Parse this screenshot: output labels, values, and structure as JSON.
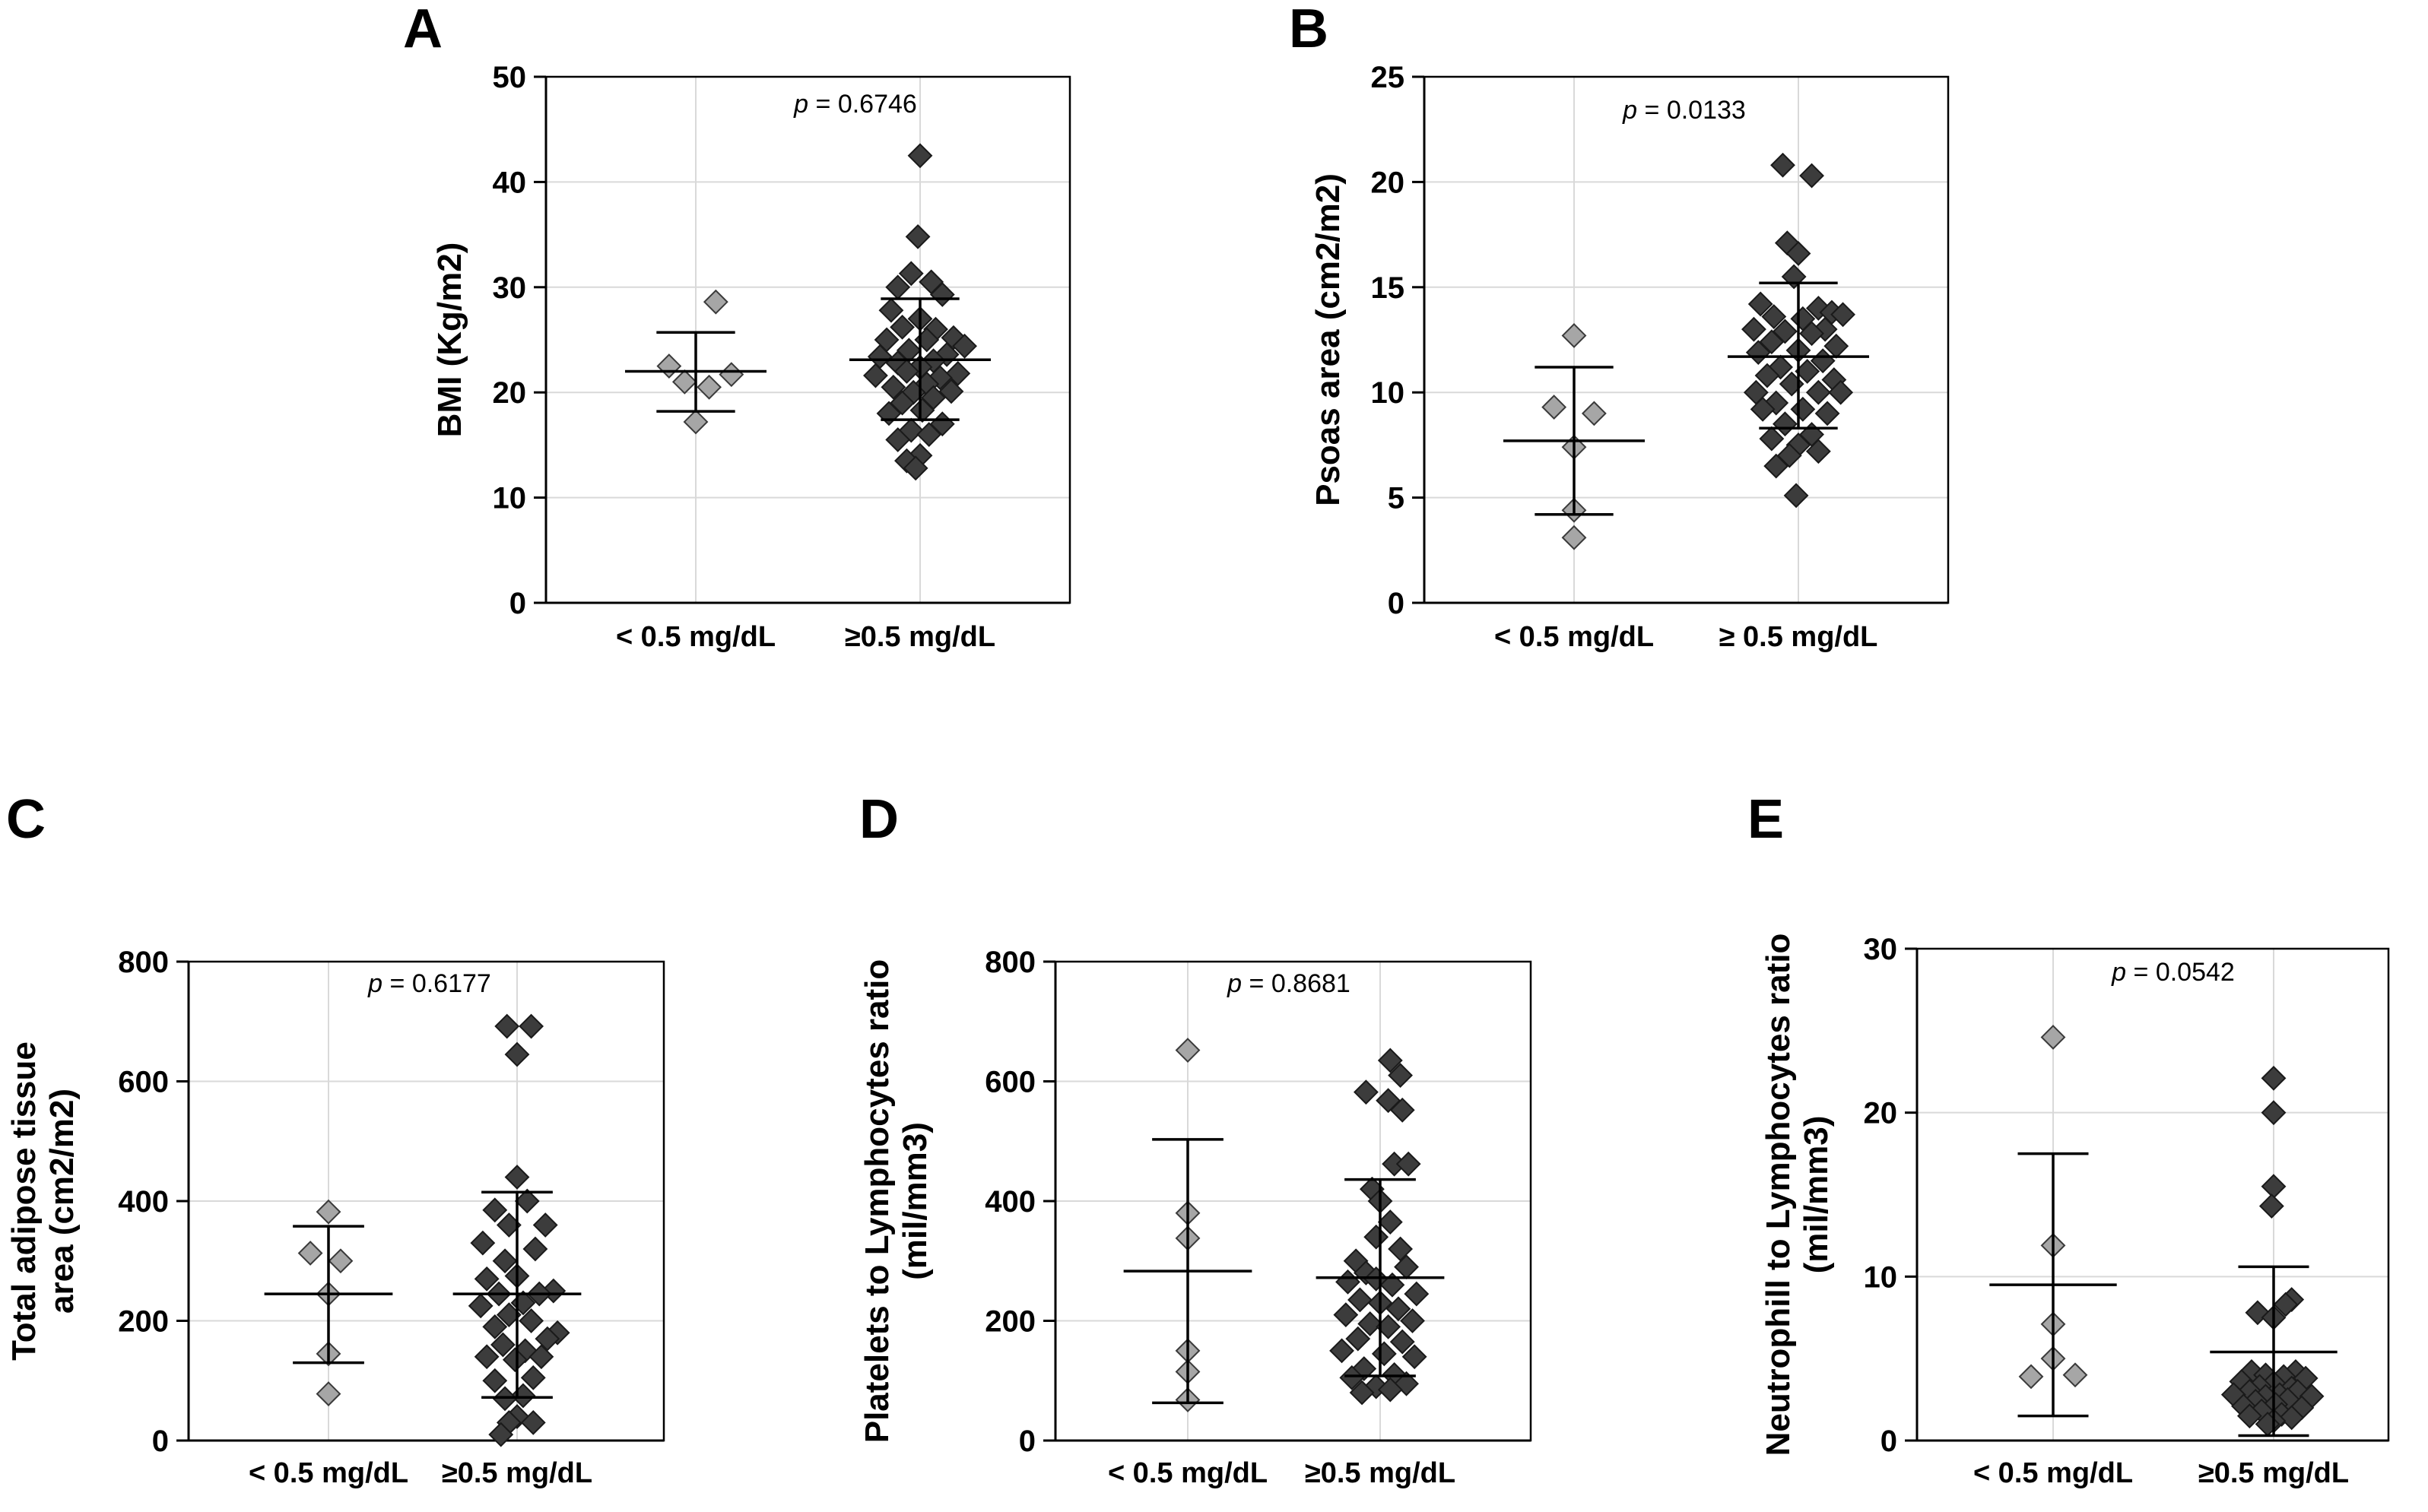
{
  "chart_data": [
    {
      "type": "scatter",
      "panel": "A",
      "ylabel": "BMI (Kg/m2)",
      "ylim": [
        0,
        50
      ],
      "yticks": [
        "0",
        "10",
        "20",
        "30",
        "40",
        "50"
      ],
      "categories": [
        "< 0.5 mg/dL",
        "≥0.5 mg/dL"
      ],
      "p_prefix": "p",
      "p_value": " = 0.6746",
      "groups": [
        {
          "category": "< 0.5 mg/dL",
          "shade": "light",
          "mean": 22.0,
          "sd_low": 18.2,
          "sd_high": 25.7,
          "points": [
            [
              -0.6,
              22.5
            ],
            [
              0.45,
              28.6
            ],
            [
              -0.25,
              21.0
            ],
            [
              0.3,
              20.5
            ],
            [
              0.8,
              21.7
            ],
            [
              0.0,
              17.2
            ]
          ]
        },
        {
          "category": "≥0.5 mg/dL",
          "shade": "dark",
          "mean": 23.1,
          "sd_low": 17.4,
          "sd_high": 28.9,
          "points": [
            [
              0.0,
              42.5
            ],
            [
              -0.05,
              34.8
            ],
            [
              -0.2,
              31.3
            ],
            [
              0.25,
              30.5
            ],
            [
              -0.5,
              30.0
            ],
            [
              0.5,
              29.3
            ],
            [
              -0.65,
              27.8
            ],
            [
              0.0,
              27.0
            ],
            [
              -0.4,
              26.2
            ],
            [
              0.35,
              26.0
            ],
            [
              0.75,
              25.2
            ],
            [
              -0.75,
              25.0
            ],
            [
              0.15,
              25.0
            ],
            [
              1.0,
              24.4
            ],
            [
              -0.25,
              24.0
            ],
            [
              0.6,
              23.6
            ],
            [
              -0.9,
              23.4
            ],
            [
              0.3,
              23.0
            ],
            [
              -0.5,
              22.8
            ],
            [
              0.0,
              22.4
            ],
            [
              -0.3,
              22.0
            ],
            [
              0.85,
              21.8
            ],
            [
              -1.0,
              21.6
            ],
            [
              0.45,
              21.4
            ],
            [
              0.15,
              20.8
            ],
            [
              -0.6,
              20.5
            ],
            [
              0.7,
              20.1
            ],
            [
              -0.15,
              20.0
            ],
            [
              0.3,
              19.5
            ],
            [
              -0.4,
              19.0
            ],
            [
              0.05,
              18.3
            ],
            [
              -0.7,
              18.0
            ],
            [
              0.5,
              17.0
            ],
            [
              -0.2,
              16.4
            ],
            [
              0.2,
              16.0
            ],
            [
              -0.5,
              15.5
            ],
            [
              0.0,
              14.0
            ],
            [
              -0.3,
              13.5
            ],
            [
              -0.1,
              12.8
            ]
          ]
        }
      ]
    },
    {
      "type": "scatter",
      "panel": "B",
      "ylabel": "Psoas area (cm2/m2)",
      "ylim": [
        0,
        25
      ],
      "yticks": [
        "0",
        "5",
        "10",
        "15",
        "20",
        "25"
      ],
      "categories": [
        "< 0.5 mg/dL",
        "≥ 0.5 mg/dL"
      ],
      "p_prefix": "p",
      "p_value": " = 0.0133",
      "groups": [
        {
          "category": "< 0.5 mg/dL",
          "shade": "light",
          "mean": 7.7,
          "sd_low": 4.2,
          "sd_high": 11.2,
          "points": [
            [
              0.0,
              12.7
            ],
            [
              -0.45,
              9.3
            ],
            [
              0.45,
              9.0
            ],
            [
              0.0,
              7.4
            ],
            [
              0.0,
              4.4
            ],
            [
              0.0,
              3.1
            ]
          ]
        },
        {
          "category": "≥ 0.5 mg/dL",
          "shade": "dark",
          "mean": 11.7,
          "sd_low": 8.3,
          "sd_high": 15.2,
          "points": [
            [
              -0.35,
              20.8
            ],
            [
              0.3,
              20.3
            ],
            [
              -0.25,
              17.1
            ],
            [
              0.0,
              16.6
            ],
            [
              -0.1,
              15.5
            ],
            [
              -0.85,
              14.2
            ],
            [
              0.45,
              14.0
            ],
            [
              0.75,
              13.8
            ],
            [
              1.0,
              13.7
            ],
            [
              -0.55,
              13.6
            ],
            [
              0.1,
              13.5
            ],
            [
              -1.0,
              13.0
            ],
            [
              0.6,
              13.0
            ],
            [
              -0.3,
              12.9
            ],
            [
              0.3,
              12.8
            ],
            [
              -0.6,
              12.4
            ],
            [
              0.85,
              12.2
            ],
            [
              0.0,
              12.0
            ],
            [
              -0.9,
              11.9
            ],
            [
              0.55,
              11.5
            ],
            [
              -0.4,
              11.2
            ],
            [
              0.2,
              11.0
            ],
            [
              -0.7,
              10.8
            ],
            [
              0.8,
              10.6
            ],
            [
              -0.15,
              10.4
            ],
            [
              -0.95,
              10.0
            ],
            [
              0.45,
              10.0
            ],
            [
              0.95,
              10.0
            ],
            [
              -0.5,
              9.5
            ],
            [
              0.1,
              9.2
            ],
            [
              -0.8,
              9.2
            ],
            [
              0.65,
              9.0
            ],
            [
              -0.3,
              8.5
            ],
            [
              0.3,
              8.0
            ],
            [
              -0.6,
              7.8
            ],
            [
              0.0,
              7.5
            ],
            [
              0.45,
              7.2
            ],
            [
              -0.2,
              7.0
            ],
            [
              -0.5,
              6.5
            ],
            [
              -0.05,
              5.1
            ]
          ]
        }
      ]
    },
    {
      "type": "scatter",
      "panel": "C",
      "ylabel_lines": [
        "Total adipose tissue",
        "area (cm2/m2)"
      ],
      "ylim": [
        0,
        800
      ],
      "yticks": [
        "0",
        "200",
        "400",
        "600",
        "800"
      ],
      "categories": [
        "< 0.5 mg/dL",
        "≥0.5 mg/dL"
      ],
      "p_prefix": "p",
      "p_value": " = 0.6177",
      "groups": [
        {
          "category": "< 0.5 mg/dL",
          "shade": "light",
          "mean": 245,
          "sd_low": 130,
          "sd_high": 358,
          "points": [
            [
              0.0,
              382
            ],
            [
              -0.45,
              313
            ],
            [
              0.3,
              300
            ],
            [
              0.0,
              245
            ],
            [
              0.0,
              145
            ],
            [
              0.0,
              78
            ]
          ]
        },
        {
          "category": "≥0.5 mg/dL",
          "shade": "dark",
          "mean": 245,
          "sd_low": 72,
          "sd_high": 415,
          "points": [
            [
              -0.25,
              692
            ],
            [
              0.35,
              692
            ],
            [
              0.0,
              645
            ],
            [
              0.0,
              440
            ],
            [
              0.25,
              400
            ],
            [
              -0.55,
              385
            ],
            [
              -0.2,
              360
            ],
            [
              0.7,
              360
            ],
            [
              -0.85,
              330
            ],
            [
              0.45,
              320
            ],
            [
              -0.3,
              300
            ],
            [
              0.0,
              275
            ],
            [
              -0.75,
              270
            ],
            [
              0.9,
              250
            ],
            [
              -0.45,
              245
            ],
            [
              0.55,
              245
            ],
            [
              0.15,
              230
            ],
            [
              -0.9,
              225
            ],
            [
              -0.2,
              210
            ],
            [
              0.35,
              200
            ],
            [
              -0.55,
              190
            ],
            [
              1.0,
              180
            ],
            [
              0.75,
              170
            ],
            [
              -0.35,
              160
            ],
            [
              0.2,
              150
            ],
            [
              -0.75,
              140
            ],
            [
              0.6,
              140
            ],
            [
              -0.05,
              135
            ],
            [
              0.4,
              105
            ],
            [
              -0.55,
              100
            ],
            [
              0.15,
              75
            ],
            [
              -0.3,
              70
            ],
            [
              0.0,
              40
            ],
            [
              -0.2,
              30
            ],
            [
              0.4,
              30
            ],
            [
              -0.4,
              10
            ]
          ]
        }
      ]
    },
    {
      "type": "scatter",
      "panel": "D",
      "ylabel_lines": [
        "Platelets to Lymphocytes ratio",
        "(mil/mm3)"
      ],
      "ylim": [
        0,
        800
      ],
      "yticks": [
        "0",
        "200",
        "400",
        "600",
        "800"
      ],
      "categories": [
        "< 0.5 mg/dL",
        "≥0.5 mg/dL"
      ],
      "p_prefix": "p",
      "p_value": " = 0.8681",
      "groups": [
        {
          "category": "< 0.5 mg/dL",
          "shade": "light",
          "mean": 283,
          "sd_low": 63,
          "sd_high": 503,
          "points": [
            [
              0.0,
              652
            ],
            [
              0.0,
              380
            ],
            [
              0.0,
              338
            ],
            [
              0.0,
              150
            ],
            [
              0.0,
              115
            ],
            [
              0.0,
              68
            ]
          ]
        },
        {
          "category": "≥0.5 mg/dL",
          "shade": "dark",
          "mean": 272,
          "sd_low": 108,
          "sd_high": 436,
          "points": [
            [
              0.25,
              635
            ],
            [
              0.5,
              610
            ],
            [
              -0.35,
              582
            ],
            [
              0.2,
              568
            ],
            [
              0.55,
              552
            ],
            [
              0.35,
              462
            ],
            [
              0.7,
              462
            ],
            [
              -0.2,
              420
            ],
            [
              0.0,
              400
            ],
            [
              0.25,
              365
            ],
            [
              -0.1,
              340
            ],
            [
              0.5,
              320
            ],
            [
              -0.6,
              300
            ],
            [
              0.65,
              290
            ],
            [
              -0.35,
              280
            ],
            [
              -0.1,
              270
            ],
            [
              -0.8,
              265
            ],
            [
              0.3,
              260
            ],
            [
              0.9,
              245
            ],
            [
              -0.5,
              235
            ],
            [
              0.0,
              230
            ],
            [
              0.45,
              220
            ],
            [
              -0.85,
              210
            ],
            [
              0.8,
              200
            ],
            [
              -0.25,
              195
            ],
            [
              0.2,
              190
            ],
            [
              -0.55,
              170
            ],
            [
              0.55,
              165
            ],
            [
              -0.95,
              150
            ],
            [
              0.1,
              145
            ],
            [
              0.85,
              140
            ],
            [
              -0.4,
              120
            ],
            [
              0.35,
              110
            ],
            [
              -0.7,
              105
            ],
            [
              0.65,
              95
            ],
            [
              -0.1,
              90
            ],
            [
              0.25,
              85
            ],
            [
              -0.45,
              80
            ]
          ]
        }
      ]
    },
    {
      "type": "scatter",
      "panel": "E",
      "ylabel_lines": [
        "Neutrophill to Lymphocytes ratio",
        "(mil/mm3)"
      ],
      "ylim": [
        0,
        30
      ],
      "yticks": [
        "0",
        "10",
        "20",
        "30"
      ],
      "categories": [
        "< 0.5 mg/dL",
        "≥0.5 mg/dL"
      ],
      "p_prefix": "p",
      "p_value": " = 0.0542",
      "groups": [
        {
          "category": "< 0.5 mg/dL",
          "shade": "light",
          "mean": 9.5,
          "sd_low": 1.5,
          "sd_high": 17.5,
          "points": [
            [
              0.0,
              24.6
            ],
            [
              0.0,
              11.9
            ],
            [
              0.0,
              7.1
            ],
            [
              -0.55,
              3.9
            ],
            [
              0.55,
              4.0
            ],
            [
              0.0,
              5.0
            ]
          ]
        },
        {
          "category": "≥0.5 mg/dL",
          "shade": "dark",
          "mean": 5.4,
          "sd_low": 0.3,
          "sd_high": 10.6,
          "points": [
            [
              0.0,
              22.1
            ],
            [
              0.0,
              20.0
            ],
            [
              0.0,
              15.5
            ],
            [
              -0.05,
              14.3
            ],
            [
              0.45,
              8.6
            ],
            [
              0.3,
              8.3
            ],
            [
              -0.4,
              7.8
            ],
            [
              0.0,
              7.5
            ],
            [
              -0.55,
              4.2
            ],
            [
              0.55,
              4.2
            ],
            [
              -0.2,
              4.0
            ],
            [
              0.25,
              3.9
            ],
            [
              0.8,
              3.8
            ],
            [
              -0.8,
              3.6
            ],
            [
              0.0,
              3.5
            ],
            [
              -0.35,
              3.3
            ],
            [
              0.45,
              3.2
            ],
            [
              -0.6,
              3.0
            ],
            [
              0.6,
              3.0
            ],
            [
              -1.0,
              2.8
            ],
            [
              0.15,
              2.8
            ],
            [
              -0.2,
              2.7
            ],
            [
              0.95,
              2.7
            ],
            [
              0.35,
              2.5
            ],
            [
              -0.45,
              2.4
            ],
            [
              0.05,
              2.2
            ],
            [
              -0.75,
              2.1
            ],
            [
              0.7,
              2.0
            ],
            [
              -0.3,
              1.8
            ],
            [
              0.2,
              1.6
            ],
            [
              -0.6,
              1.5
            ],
            [
              0.45,
              1.4
            ],
            [
              0.0,
              1.2
            ],
            [
              -0.15,
              1.0
            ]
          ]
        }
      ]
    }
  ]
}
